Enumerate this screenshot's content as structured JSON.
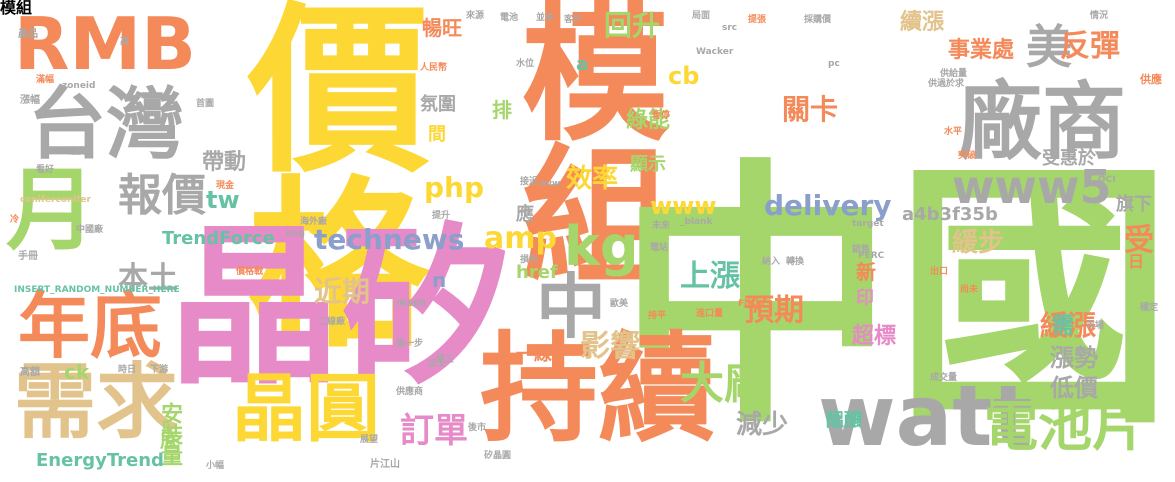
{
  "palette": {
    "yellow": "#fdd835",
    "orange": "#f48a5a",
    "green": "#a5d66b",
    "gray": "#a8a8a8",
    "pink": "#e68ac8",
    "tan": "#e2c38b",
    "blue": "#8a9fcb",
    "teal": "#66c2a5"
  },
  "words": {
    "w01": "價格",
    "w02": "模組",
    "w03": "中國",
    "w04": "晶矽",
    "w05": "持續",
    "w06": "RMB",
    "w07": "台灣",
    "w08": "月",
    "w09": "廠商",
    "w10": "watt",
    "w11": "需求",
    "w12": "晶圓",
    "w13": "年底",
    "w14": "電池片",
    "w15": "中",
    "w16": "kg",
    "w17": "大廠",
    "w18": "www5",
    "w19": "美",
    "w20": "報價",
    "w21": "technews",
    "w22": "delivery",
    "w23": "php",
    "w24": "amp",
    "w25": "上漲",
    "w26": "預期",
    "w27": "影響",
    "w28": "效率",
    "w29": "回升",
    "w30": "關卡",
    "w31": "反彈",
    "w32": "本土",
    "w33": "近期",
    "w34": "訂單",
    "w35": "減少",
    "w36": "安裝量",
    "w37": "EnergyTrend",
    "w38": "TrendForce",
    "w39": "a4b3f35b",
    "w40": "緩漲",
    "w41": "緩步",
    "w42": "漲勢",
    "w43": "低價",
    "w44": "需",
    "w45": "超標",
    "w46": "續漲",
    "w47": "事業處",
    "w48": "受",
    "w49": "帶動",
    "w50": "綠能",
    "w51": "暢旺",
    "w52": "www",
    "w53": "tw",
    "w54": "cb",
    "w55": "ck",
    "w56": "href",
    "w57": "顯示",
    "w58": "氛圍",
    "w59": "排",
    "w60": "間",
    "w61": "應",
    "w62": "一線",
    "w63": "受惠於",
    "w64": "旗下",
    "w65": "新",
    "w66": "印",
    "w67": "醞釀",
    "w68": "底",
    "w69": "n",
    "w70": "a",
    "w71": "日",
    "w72": "供應",
    "w73": "Wacker",
    "w74": "zoneid",
    "w75": "coniferconifer",
    "w76": "INSERT_RANDOM_NUMBER_HERE",
    "w77": "_blank",
    "w78": "Flickr",
    "w79": "PERC",
    "w80": "target",
    "w81": "img",
    "w82": "OCI",
    "w83": "src",
    "w84": "avw",
    "w85": "pc",
    "w86": "INSER",
    "w87": "片江山",
    "w88": "矽晶圓",
    "w89": "海外廠",
    "w90": "進口量",
    "w91": "成交量",
    "w92": "市場",
    "w93": "情況",
    "w94": "產品",
    "w95": "漲幅",
    "w96": "高額",
    "w97": "手冊",
    "w98": "中國廠",
    "w99": "二線廠",
    "w100": "人民幣",
    "w101": "客戶",
    "w102": "電池",
    "w103": "來源",
    "w104": "並未",
    "w105": "採購價",
    "w106": "局面",
    "w107": "供給量",
    "w108": "提升",
    "w109": "水位",
    "w110": "提張",
    "w111": "現金",
    "w112": "加工",
    "w113": "持平",
    "w114": "尚未",
    "w115": "穩定",
    "w116": "出口",
    "w117": "第三",
    "w118": "供應商",
    "w119": "價格戰",
    "w120": "供過於求",
    "w121": "進一步",
    "w122": "電站",
    "w123": "未來",
    "w124": "轉換",
    "w125": "納入",
    "w126": "看好",
    "w127": "冷",
    "w128": "高",
    "w129": "滿幅",
    "w130": "首圖",
    "w131": "週度",
    "w132": "時日",
    "w133": "下游",
    "w134": "展望",
    "w135": "小幅",
    "w136": "銷售",
    "w137": "突破",
    "w138": "接近",
    "w139": "損失",
    "w140": "歐美",
    "w141": "暫停",
    "w142": "水平",
    "w143": "後市"
  }
}
